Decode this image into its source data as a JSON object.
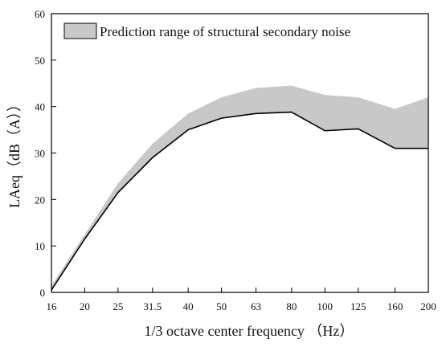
{
  "chart_data": {
    "type": "area",
    "title": "",
    "xlabel": "1/3 octave center frequency （Hz）",
    "ylabel": "LAeq（dB（A））",
    "categories": [
      "16",
      "20",
      "25",
      "31.5",
      "40",
      "50",
      "63",
      "80",
      "100",
      "125",
      "160",
      "200"
    ],
    "xlim": [
      16,
      200
    ],
    "ylim": [
      0,
      60
    ],
    "y_ticks": [
      0,
      10,
      20,
      30,
      40,
      50,
      60
    ],
    "x_scale": "log",
    "grid": false,
    "legend": {
      "position": "top-right",
      "label": "Prediction range of structural secondary noise"
    },
    "series": [
      {
        "name": "Prediction range of structural secondary noise",
        "lower": [
          0.5,
          11.5,
          21.5,
          29.0,
          35.0,
          37.5,
          38.5,
          38.8,
          34.8,
          35.2,
          31.0,
          31.0
        ],
        "upper": [
          1.5,
          12.5,
          23.5,
          32.0,
          38.5,
          42.0,
          44.0,
          44.5,
          42.5,
          42.0,
          39.5,
          42.0
        ]
      }
    ],
    "colors": {
      "fill": "#c8c8c8",
      "stroke": "#000000"
    }
  }
}
